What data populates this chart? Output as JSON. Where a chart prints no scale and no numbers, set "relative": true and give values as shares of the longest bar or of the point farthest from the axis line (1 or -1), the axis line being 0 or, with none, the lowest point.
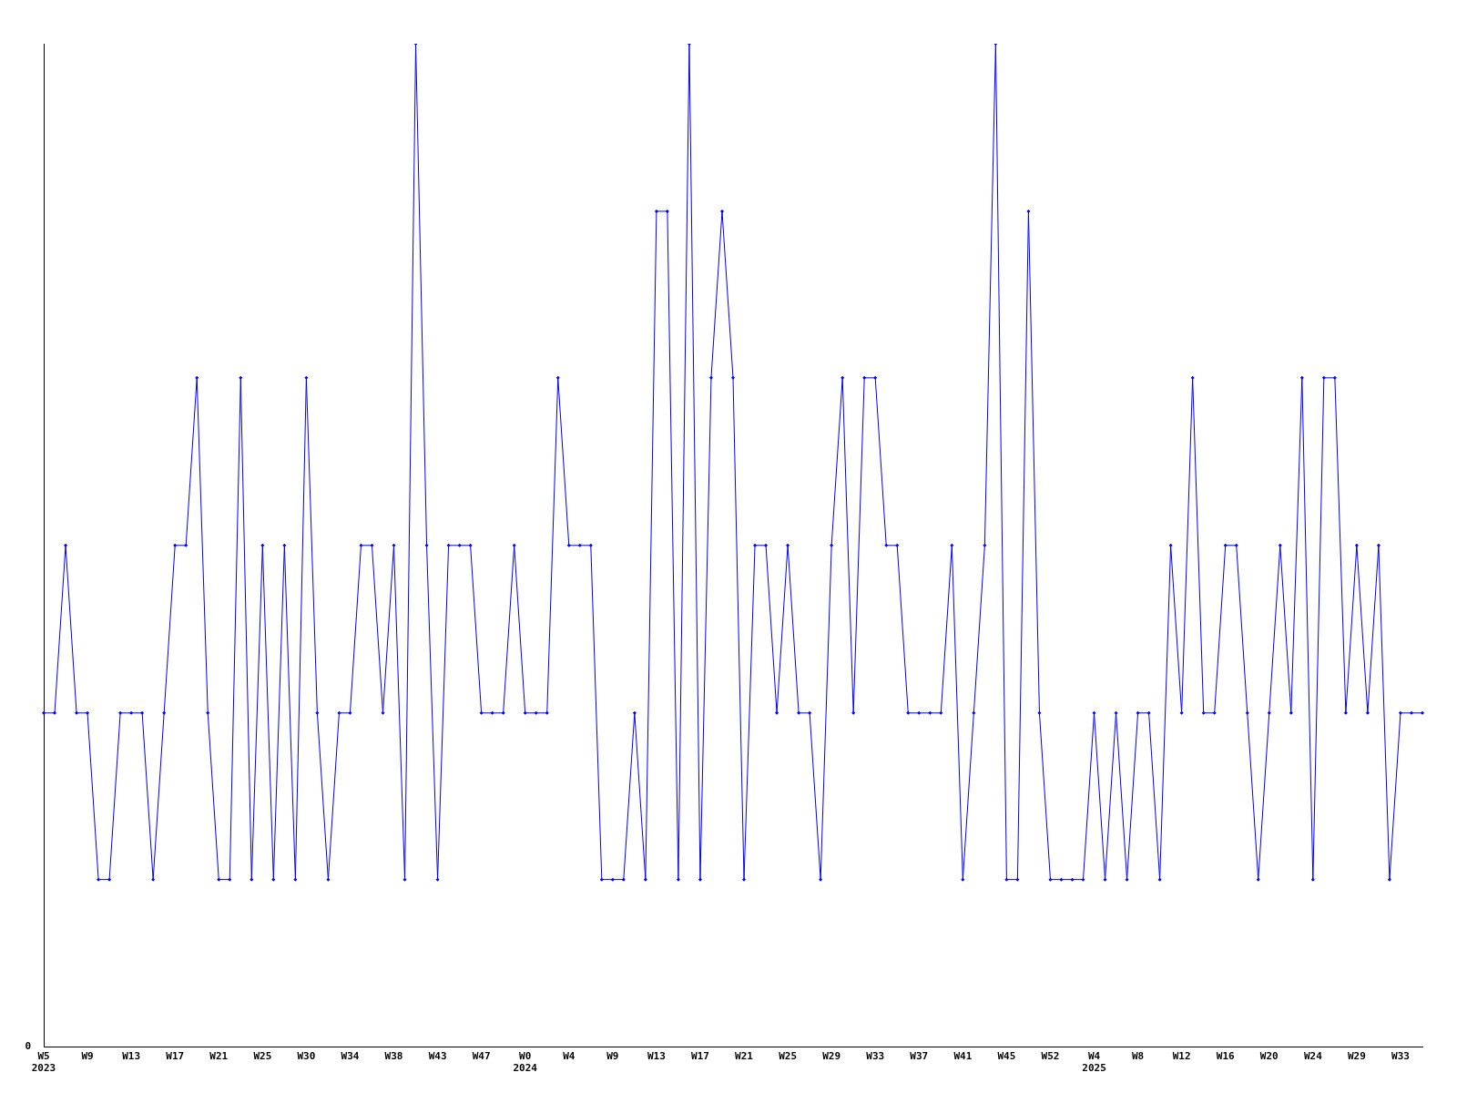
{
  "chart_data": {
    "type": "line",
    "relative": true,
    "marker": "diamond",
    "line_style": "solid",
    "grid": false,
    "legend": false,
    "annotations": [
      "0"
    ],
    "categories": [
      "W5\n2023",
      null,
      null,
      null,
      "W9",
      null,
      null,
      null,
      "W13",
      null,
      null,
      null,
      "W17",
      null,
      null,
      null,
      "W21",
      null,
      null,
      null,
      "W25",
      null,
      null,
      null,
      "W30",
      null,
      null,
      null,
      "W34",
      null,
      null,
      null,
      "W38",
      null,
      null,
      null,
      "W43",
      null,
      null,
      null,
      "W47",
      null,
      null,
      null,
      "W0\n2024",
      null,
      null,
      null,
      "W4",
      null,
      null,
      null,
      "W9",
      null,
      null,
      null,
      "W13",
      null,
      null,
      null,
      "W17",
      null,
      null,
      null,
      "W21",
      null,
      null,
      null,
      "W25",
      null,
      null,
      null,
      "W29",
      null,
      null,
      null,
      "W33",
      null,
      null,
      null,
      "W37",
      null,
      null,
      null,
      "W41",
      null,
      null,
      null,
      "W45",
      null,
      null,
      null,
      "W52",
      null,
      null,
      null,
      "W4\n2025",
      null,
      null,
      null,
      "W8",
      null,
      null,
      null,
      "W12",
      null,
      null,
      null,
      "W16",
      null,
      null,
      null,
      "W20",
      null,
      null,
      null,
      "W24",
      null,
      null,
      null,
      "W29",
      null,
      null,
      null,
      "W33",
      null,
      null
    ],
    "series": [
      {
        "color": "#0000ff",
        "values": [
          0.333,
          0.333,
          0.5,
          0.333,
          0.333,
          0.167,
          0.167,
          0.333,
          0.333,
          0.333,
          0.167,
          0.333,
          0.5,
          0.5,
          0.667,
          0.333,
          0.167,
          0.167,
          0.667,
          0.167,
          0.5,
          0.167,
          0.5,
          0.167,
          0.667,
          0.333,
          0.167,
          0.333,
          0.333,
          0.5,
          0.5,
          0.333,
          0.5,
          0.167,
          1,
          0.5,
          0.167,
          0.5,
          0.5,
          0.5,
          0.333,
          0.333,
          0.333,
          0.5,
          0.333,
          0.333,
          0.333,
          0.667,
          0.5,
          0.5,
          0.5,
          0.167,
          0.167,
          0.167,
          0.333,
          0.167,
          0.833,
          0.833,
          0.167,
          1,
          0.167,
          0.667,
          0.833,
          0.667,
          0.167,
          0.5,
          0.5,
          0.333,
          0.5,
          0.333,
          0.333,
          0.167,
          0.5,
          0.667,
          0.333,
          0.667,
          0.667,
          0.5,
          0.5,
          0.333,
          0.333,
          0.333,
          0.333,
          0.5,
          0.167,
          0.333,
          0.5,
          1,
          0.167,
          0.167,
          0.833,
          0.333,
          0.167,
          0.167,
          0.167,
          0.167,
          0.333,
          0.167,
          0.333,
          0.167,
          0.333,
          0.333,
          0.167,
          0.5,
          0.333,
          0.667,
          0.333,
          0.333,
          0.5,
          0.5,
          0.333,
          0.167,
          0.333,
          0.5,
          0.333,
          0.667,
          0.167,
          0.667,
          0.667,
          0.333,
          0.5,
          0.333,
          0.5,
          0.167,
          0.333,
          0.333,
          0.333
        ]
      }
    ]
  }
}
